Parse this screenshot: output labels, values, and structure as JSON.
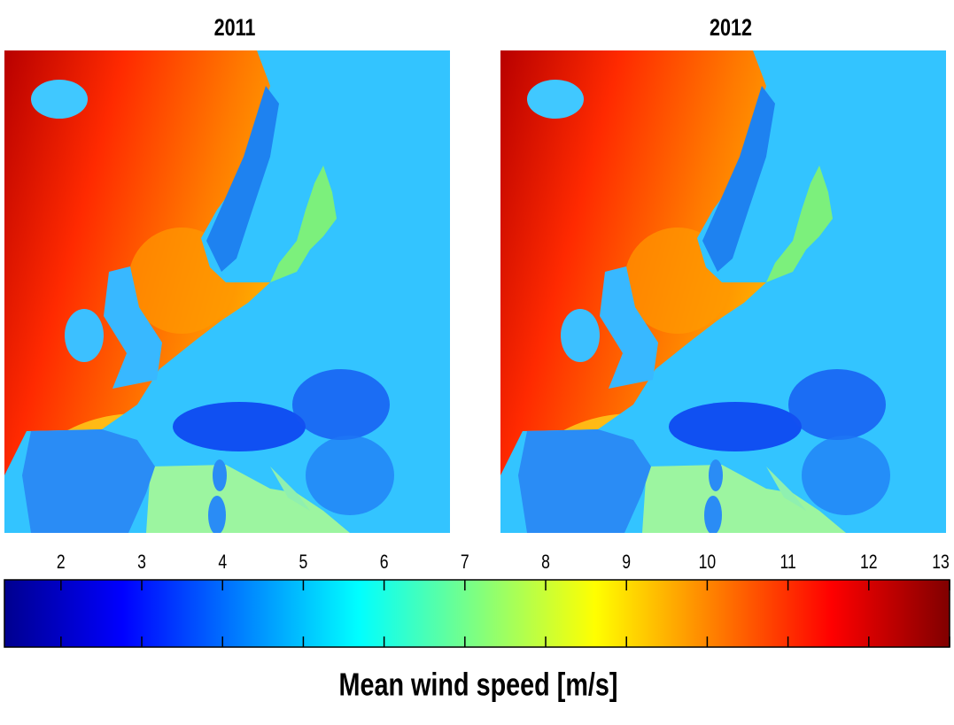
{
  "panels": [
    {
      "title": "2011"
    },
    {
      "title": "2012"
    }
  ],
  "colorbar": {
    "colormap": "jet",
    "lim": [
      1.3,
      13
    ],
    "ticks": [
      2,
      3,
      4,
      5,
      6,
      7,
      8,
      9,
      10,
      11,
      12,
      13
    ],
    "label": "Mean wind speed [m/s]"
  }
}
